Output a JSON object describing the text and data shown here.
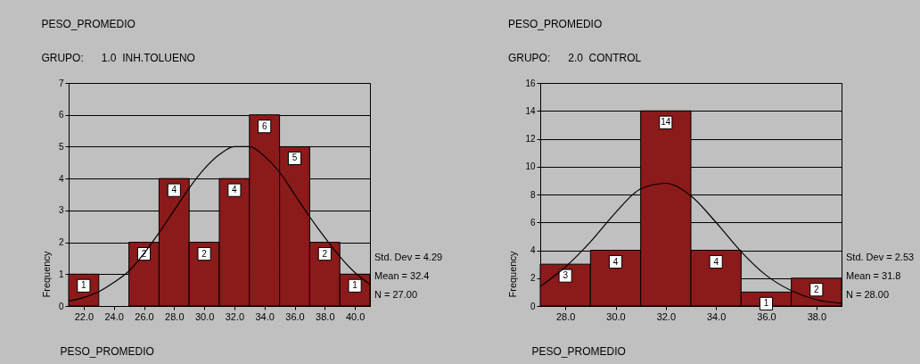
{
  "chart_data": [
    {
      "type": "histogram",
      "title": "PESO_PROMEDIO",
      "subtitle": "GRUPO:      1.0  INH.TOLUENO",
      "xlabel": "PESO_PROMEDIO",
      "ylabel": "Frequency",
      "bins": [
        21,
        23,
        25,
        27,
        29,
        31,
        33,
        35,
        37,
        39,
        41
      ],
      "values": [
        1,
        0,
        2,
        4,
        2,
        4,
        6,
        5,
        2,
        1
      ],
      "color": "#8b1a1a",
      "series": [
        {
          "type": "line",
          "color": "#000000",
          "x": [
            21,
            22,
            23,
            24,
            25,
            26,
            27,
            28,
            29,
            30,
            31,
            32,
            33,
            34,
            35,
            36,
            37,
            38,
            39,
            40,
            41
          ],
          "values": [
            0.15,
            0.27,
            0.45,
            0.74,
            1.1,
            1.65,
            2.3,
            3.0,
            3.7,
            4.3,
            4.75,
            5.0,
            5.0,
            4.7,
            4.2,
            3.5,
            2.8,
            2.15,
            1.55,
            1.05,
            0.68
          ]
        }
      ],
      "xlim": [
        21,
        41
      ],
      "xticks": [
        {
          "value": 22,
          "label": "22.0"
        },
        {
          "value": 24,
          "label": "24.0"
        },
        {
          "value": 26,
          "label": "26.0"
        },
        {
          "value": 28,
          "label": "28.0"
        },
        {
          "value": 30,
          "label": "30.0"
        },
        {
          "value": 32,
          "label": "32.0"
        },
        {
          "value": 34,
          "label": "34.0"
        },
        {
          "value": 36,
          "label": "36.0"
        },
        {
          "value": 38,
          "label": "38.0"
        },
        {
          "value": 40,
          "label": "40.0"
        }
      ],
      "ylim": [
        0,
        7
      ],
      "yticks": [
        0,
        1,
        2,
        3,
        4,
        5,
        6,
        7
      ],
      "grid": "y",
      "value_labels": [
        "1",
        null,
        "2",
        "4",
        "2",
        "4",
        "6",
        "5",
        "2",
        "1"
      ],
      "annotations": [
        "Std. Dev = 4.29",
        "Mean = 32.4",
        "N = 27.00"
      ]
    },
    {
      "type": "histogram",
      "title": "PESO_PROMEDIO",
      "subtitle": "GRUPO:      2.0  CONTROL",
      "xlabel": "PESO_PROMEDIO",
      "ylabel": "Frequency",
      "bins": [
        27,
        29,
        31,
        33,
        35,
        37,
        39
      ],
      "values": [
        3,
        4,
        14,
        4,
        1,
        2
      ],
      "color": "#8b1a1a",
      "series": [
        {
          "type": "line",
          "color": "#000000",
          "x": [
            27,
            28,
            29,
            30,
            31,
            32,
            33,
            34,
            35,
            36,
            37,
            38,
            39
          ],
          "values": [
            1.4,
            2.8,
            4.6,
            6.7,
            8.4,
            8.8,
            7.9,
            6.0,
            3.9,
            2.2,
            1.1,
            0.45,
            0.2
          ]
        }
      ],
      "xlim": [
        27,
        39
      ],
      "xticks": [
        {
          "value": 28,
          "label": "28.0"
        },
        {
          "value": 30,
          "label": "30.0"
        },
        {
          "value": 32,
          "label": "32.0"
        },
        {
          "value": 34,
          "label": "34.0"
        },
        {
          "value": 36,
          "label": "36.0"
        },
        {
          "value": 38,
          "label": "38.0"
        }
      ],
      "ylim": [
        0,
        16
      ],
      "yticks": [
        0,
        2,
        4,
        6,
        8,
        10,
        12,
        14,
        16
      ],
      "grid": "y",
      "value_labels": [
        "3",
        "4",
        "14",
        "4",
        "1",
        "2"
      ],
      "annotations": [
        "Std. Dev = 2.53",
        "Mean = 31.8",
        "N = 28.00"
      ]
    }
  ]
}
